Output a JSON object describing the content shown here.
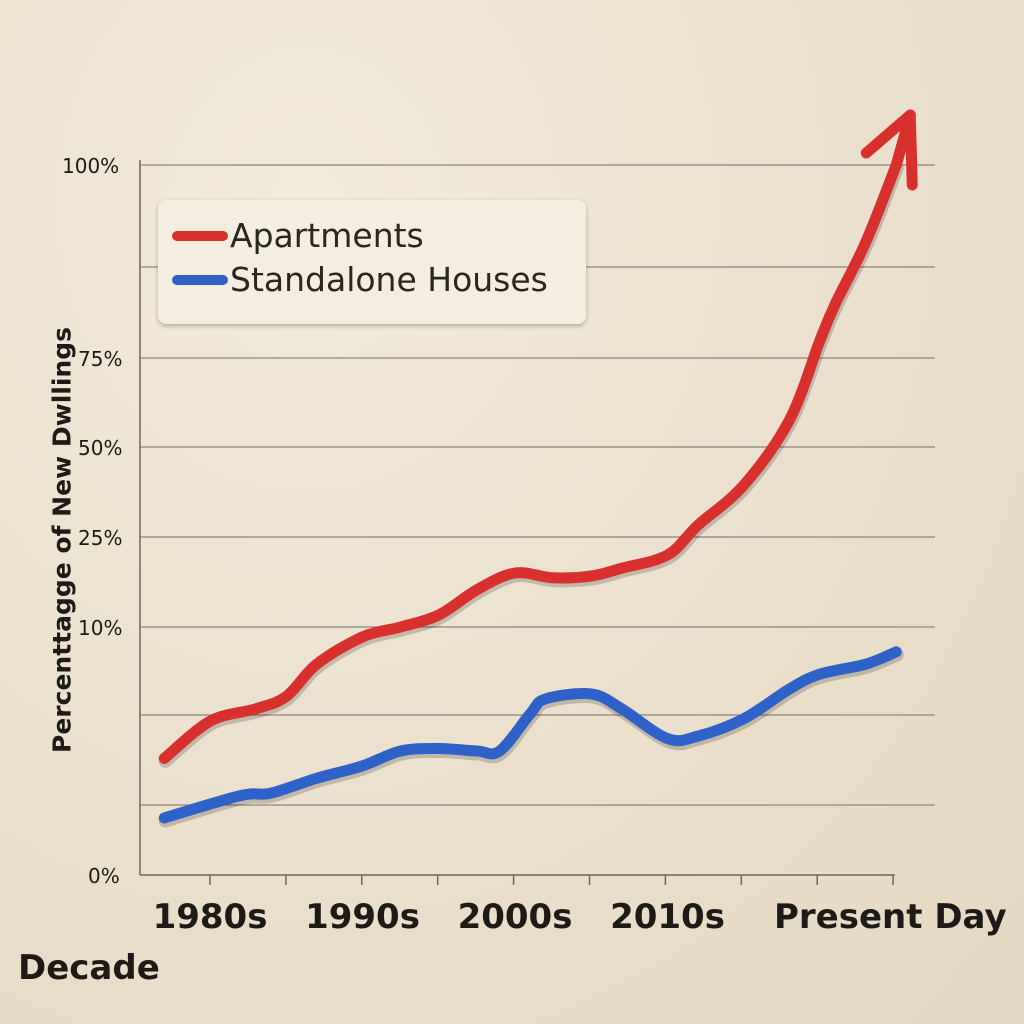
{
  "chart_data": {
    "type": "line",
    "title": "",
    "xlabel": "Decade",
    "ylabel": "Percenttagge of New  Dwllings",
    "x_tick_labels": [
      "1980s",
      "1990s",
      "2000s",
      "2010s",
      "Present Day"
    ],
    "x_tick_years": [
      1980,
      1990,
      2000,
      2010,
      2020
    ],
    "y_tick_labels": [
      "0%",
      "10%",
      "25%",
      "50%",
      "75%",
      "100%"
    ],
    "y_tick_values": [
      0,
      10,
      25,
      50,
      75,
      100
    ],
    "y_scale": "nonlinear (uneven tick spacing)",
    "grid": true,
    "legend_position": "top-left",
    "series": [
      {
        "name": "Apartments",
        "color": "#d8302c",
        "end_marker": "arrow",
        "points": [
          [
            1977,
            4.7
          ],
          [
            1980,
            6.2
          ],
          [
            1983,
            6.7
          ],
          [
            1985,
            7.2
          ],
          [
            1987,
            8.5
          ],
          [
            1990,
            9.6
          ],
          [
            1992.5,
            10
          ],
          [
            1995,
            12
          ],
          [
            1997.5,
            16.2
          ],
          [
            2000,
            19
          ],
          [
            2002.5,
            18.2
          ],
          [
            2005,
            18.5
          ],
          [
            2007,
            19.8
          ],
          [
            2010,
            22
          ],
          [
            2012,
            28.3
          ],
          [
            2015,
            39.4
          ],
          [
            2018,
            57.6
          ],
          [
            2020,
            77.3
          ],
          [
            2021,
            82
          ],
          [
            2023,
            90
          ],
          [
            2025,
            100
          ]
        ]
      },
      {
        "name": "Standalone Houses",
        "color": "#2f62c8",
        "points": [
          [
            1977,
            2.3
          ],
          [
            1982,
            3.2
          ],
          [
            1984,
            3.3
          ],
          [
            1987,
            3.9
          ],
          [
            1990,
            4.4
          ],
          [
            1992.5,
            5.0
          ],
          [
            1995,
            5.1
          ],
          [
            1997.5,
            5.0
          ],
          [
            1999,
            5.0
          ],
          [
            2001,
            6.5
          ],
          [
            2002,
            7.1
          ],
          [
            2005,
            7.3
          ],
          [
            2007,
            6.7
          ],
          [
            2010,
            5.5
          ],
          [
            2012,
            5.6
          ],
          [
            2015,
            6.3
          ],
          [
            2018,
            7.5
          ],
          [
            2020,
            8.1
          ],
          [
            2023,
            8.5
          ],
          [
            2025,
            9.0
          ]
        ]
      }
    ]
  }
}
